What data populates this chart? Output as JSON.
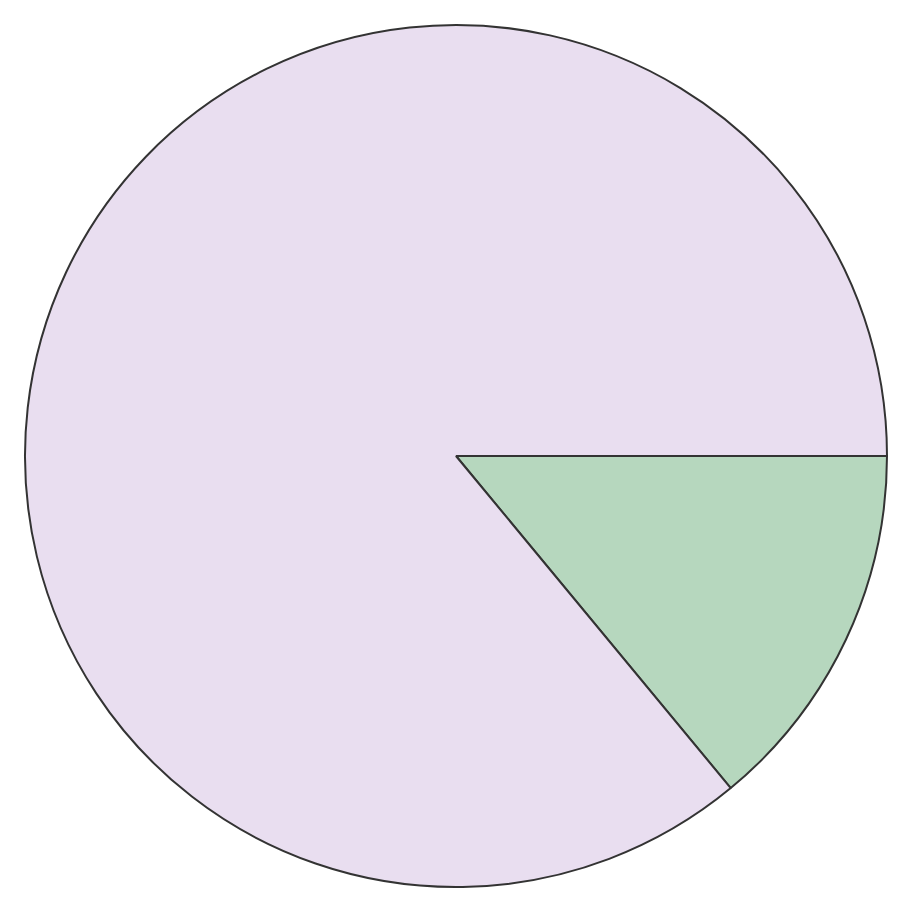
{
  "chart_data": {
    "type": "pie",
    "categories": [
      null,
      null
    ],
    "values": [
      14,
      86
    ],
    "colors": [
      "#b6d7be",
      "#e9def0"
    ],
    "legend": false
  }
}
